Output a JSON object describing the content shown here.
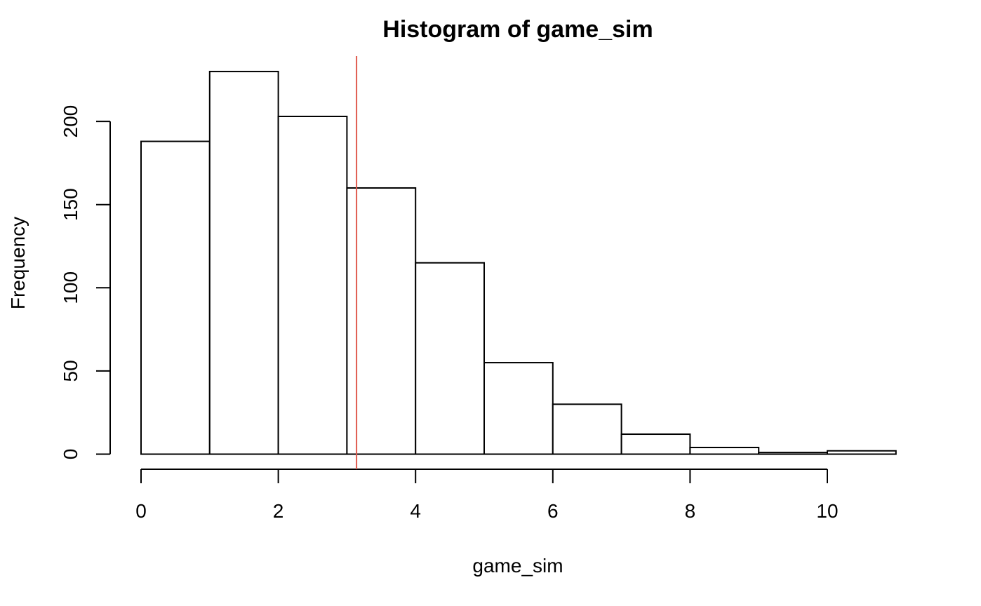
{
  "chart_data": {
    "type": "bar",
    "title": "Histogram of game_sim",
    "xlabel": "game_sim",
    "ylabel": "Frequency",
    "bins": [
      {
        "start": 0,
        "end": 1,
        "count": 188
      },
      {
        "start": 1,
        "end": 2,
        "count": 230
      },
      {
        "start": 2,
        "end": 3,
        "count": 203
      },
      {
        "start": 3,
        "end": 4,
        "count": 160
      },
      {
        "start": 4,
        "end": 5,
        "count": 115
      },
      {
        "start": 5,
        "end": 6,
        "count": 55
      },
      {
        "start": 6,
        "end": 7,
        "count": 30
      },
      {
        "start": 7,
        "end": 8,
        "count": 12
      },
      {
        "start": 8,
        "end": 9,
        "count": 4
      },
      {
        "start": 9,
        "end": 10,
        "count": 1
      },
      {
        "start": 10,
        "end": 11,
        "count": 2
      }
    ],
    "xlim": [
      0,
      11
    ],
    "ylim": [
      0,
      230
    ],
    "x_ticks": [
      0,
      2,
      4,
      6,
      8,
      10
    ],
    "y_ticks": [
      0,
      50,
      100,
      150,
      200
    ],
    "vline": {
      "x": 3.14,
      "color": "#e05a4f"
    },
    "bar_fill": "#ffffff",
    "bar_stroke": "#000000",
    "grid": false,
    "legend": "none"
  }
}
